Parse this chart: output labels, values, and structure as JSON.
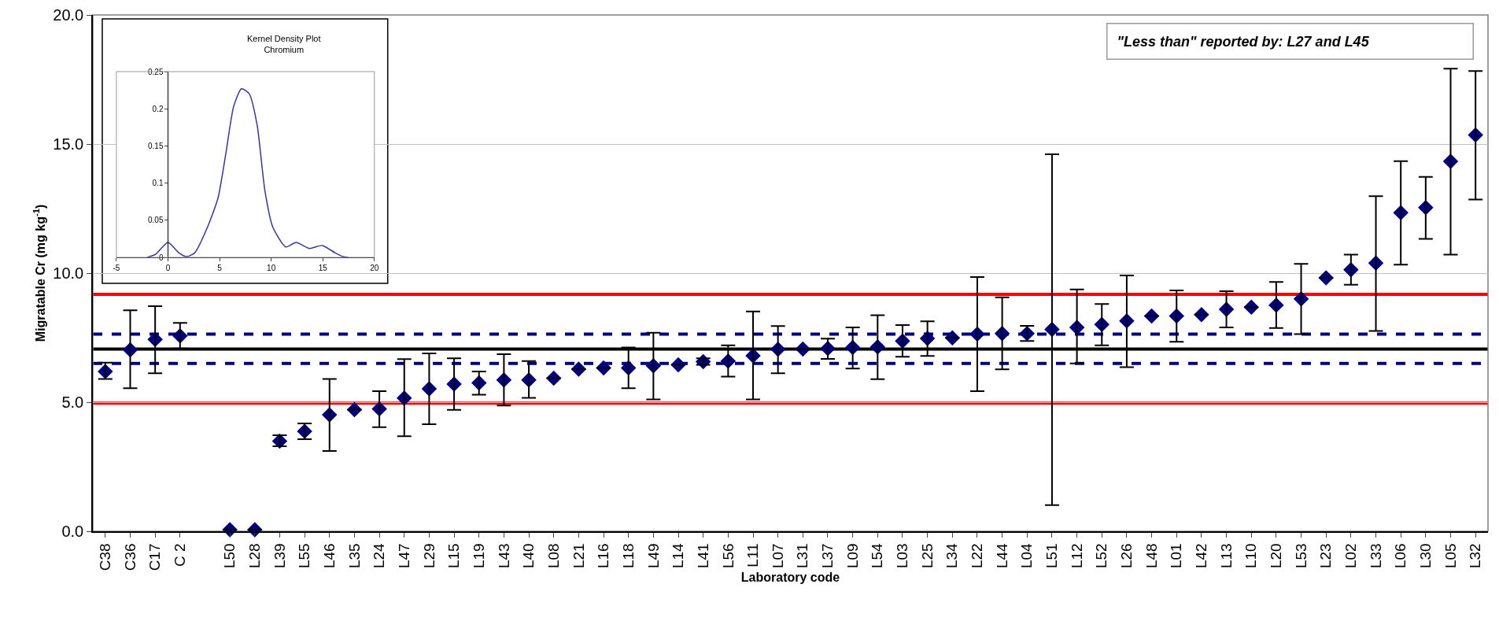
{
  "chart_data": [
    {
      "type": "scatter",
      "xlabel": "Laboratory code",
      "ylabel": "Migratable Cr (mg kg$^{-1}$)",
      "categories": [
        "C38",
        "C36",
        "C17",
        "C 2",
        null,
        "L50",
        "L28",
        "L39",
        "L55",
        "L46",
        "L35",
        "L24",
        "L47",
        "L29",
        "L15",
        "L19",
        "L43",
        "L40",
        "L08",
        "L21",
        "L16",
        "L18",
        "L49",
        "L14",
        "L41",
        "L56",
        "L11",
        "L07",
        "L31",
        "L37",
        "L09",
        "L54",
        "L03",
        "L25",
        "L34",
        "L22",
        "L44",
        "L04",
        "L51",
        "L12",
        "L52",
        "L26",
        "L48",
        "L01",
        "L42",
        "L13",
        "L10",
        "L20",
        "L53",
        "L23",
        "L02",
        "L33",
        "L06",
        "L30",
        "L05",
        "L32"
      ],
      "series": [
        {
          "color": "#000080",
          "values": [
            6.19,
            7.03,
            7.43,
            7.57,
            null,
            0.06,
            0.06,
            3.49,
            3.87,
            4.51,
            4.71,
            4.74,
            5.16,
            5.52,
            5.7,
            5.75,
            5.86,
            5.86,
            5.93,
            6.28,
            6.33,
            6.33,
            6.41,
            6.45,
            6.57,
            6.59,
            6.8,
            7.05,
            7.06,
            7.08,
            7.12,
            7.14,
            7.37,
            7.47,
            7.49,
            7.64,
            7.66,
            7.66,
            7.82,
            7.9,
            8.01,
            8.15,
            8.34,
            8.34,
            8.39,
            8.6,
            8.68,
            8.76,
            9.0,
            9.82,
            10.13,
            10.39,
            12.34,
            12.54,
            14.33,
            15.35
          ],
          "errors": [
            [
              5.9,
              6.53
            ],
            [
              5.54,
              8.56
            ],
            [
              6.12,
              8.72
            ],
            [
              7.08,
              8.07
            ],
            null,
            null,
            null,
            [
              3.29,
              3.72
            ],
            [
              3.57,
              4.18
            ],
            [
              3.11,
              5.9
            ],
            null,
            [
              4.03,
              5.43
            ],
            [
              3.68,
              6.67
            ],
            [
              4.15,
              6.89
            ],
            [
              4.7,
              6.7
            ],
            [
              5.29,
              6.19
            ],
            [
              4.87,
              6.86
            ],
            [
              5.17,
              6.59
            ],
            null,
            null,
            null,
            [
              5.54,
              7.12
            ],
            [
              5.11,
              7.69
            ],
            null,
            [
              6.45,
              6.7
            ],
            [
              5.99,
              7.2
            ],
            [
              5.11,
              8.51
            ],
            [
              6.12,
              7.95
            ],
            null,
            [
              6.68,
              7.46
            ],
            [
              6.3,
              7.9
            ],
            [
              5.89,
              8.37
            ],
            [
              6.76,
              7.99
            ],
            [
              6.79,
              8.13
            ],
            null,
            [
              5.43,
              9.85
            ],
            [
              6.27,
              9.06
            ],
            [
              7.37,
              7.96
            ],
            [
              1.01,
              14.6
            ],
            [
              6.5,
              9.37
            ],
            [
              7.2,
              8.8
            ],
            [
              6.36,
              9.91
            ],
            null,
            [
              7.34,
              9.33
            ],
            null,
            [
              7.9,
              9.3
            ],
            null,
            [
              7.87,
              9.66
            ],
            [
              7.64,
              10.36
            ],
            null,
            [
              9.55,
              10.72
            ],
            [
              7.76,
              12.98
            ],
            [
              10.33,
              14.34
            ],
            [
              11.33,
              13.73
            ],
            [
              10.72,
              17.92
            ],
            [
              12.85,
              17.83
            ]
          ]
        }
      ],
      "marker": "diamond",
      "ylim": [
        0,
        20
      ],
      "yticks": [
        {
          "value": 0,
          "label": "0.0"
        },
        {
          "value": 5,
          "label": "5.0"
        },
        {
          "value": 10,
          "label": "10.0"
        },
        {
          "value": 15,
          "label": "15.0"
        },
        {
          "value": 20,
          "label": "20.0"
        }
      ],
      "grid": "y",
      "ref_lines": [
        {
          "axis": "y",
          "value": 9.18,
          "color": "#ff0000",
          "line_style": "solid"
        },
        {
          "axis": "y",
          "value": 7.64,
          "color": "#000080",
          "line_style": "dashed"
        },
        {
          "axis": "y",
          "value": 7.06,
          "color": "#000000",
          "line_style": "solid"
        },
        {
          "axis": "y",
          "value": 6.5,
          "color": "#000080",
          "line_style": "dashed"
        },
        {
          "axis": "y",
          "value": 4.96,
          "color": "#ff0000",
          "line_style": "solid"
        }
      ],
      "annotations": [
        "\"Less than\" reported by: L27 and L45"
      ]
    },
    {
      "type": "line",
      "title": "Kernel Density Plot",
      "subtitle": "Chromium",
      "x": [
        -2.02,
        -1.21,
        0,
        1.06,
        1.82,
        2.58,
        3.84,
        4.85,
        5.61,
        6.36,
        7.12,
        7.88,
        8.64,
        9.39,
        10.15,
        11.41,
        12.42,
        13.69,
        14.95,
        16.21,
        16.97,
        17.5
      ],
      "series": [
        {
          "color": "#3333aa",
          "values": [
            0,
            0.004,
            0.02,
            0.006,
            0.001,
            0.006,
            0.041,
            0.08,
            0.14,
            0.203,
            0.227,
            0.22,
            0.178,
            0.09,
            0.041,
            0.014,
            0.02,
            0.012,
            0.016,
            0.006,
            0.001,
            0
          ]
        }
      ],
      "marker": "none",
      "line_style": "solid",
      "xlim": [
        -5,
        20
      ],
      "xticks": [
        -5,
        0,
        5,
        10,
        15,
        20
      ],
      "ylim": [
        0,
        0.25
      ],
      "yticks": [
        0,
        0.05,
        0.1,
        0.15,
        0.2,
        0.25
      ],
      "grid": false
    }
  ]
}
